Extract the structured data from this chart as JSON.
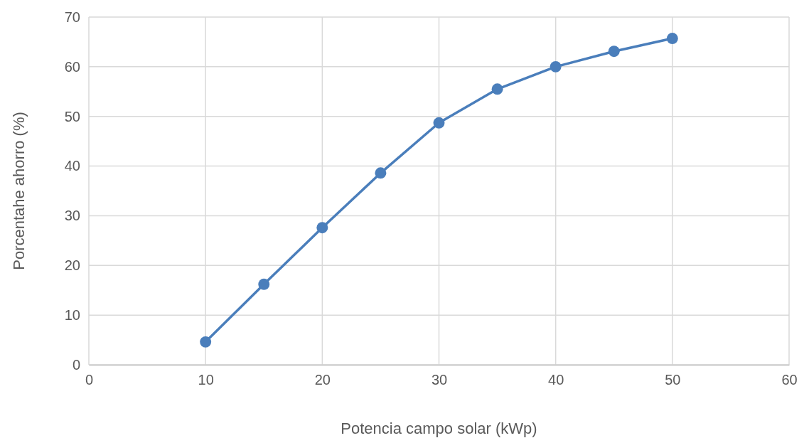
{
  "chart_data": {
    "type": "line",
    "xlabel": "Potencia campo solar (kWp)",
    "ylabel": "Porcentahe ahorro (%)",
    "x": [
      10,
      15,
      20,
      25,
      30,
      35,
      40,
      45,
      50
    ],
    "series": [
      {
        "color": "#4a7ebb",
        "values": [
          4.6,
          16.2,
          27.6,
          38.6,
          48.7,
          55.5,
          60.0,
          63.1,
          65.7
        ]
      }
    ],
    "xlim": [
      0,
      60
    ],
    "xticks": [
      0,
      10,
      20,
      30,
      40,
      50,
      60
    ],
    "ylim": [
      0,
      70
    ],
    "yticks": [
      0,
      10,
      20,
      30,
      40,
      50,
      60,
      70
    ],
    "grid": true,
    "marker": "circle",
    "line_style": "solid"
  }
}
